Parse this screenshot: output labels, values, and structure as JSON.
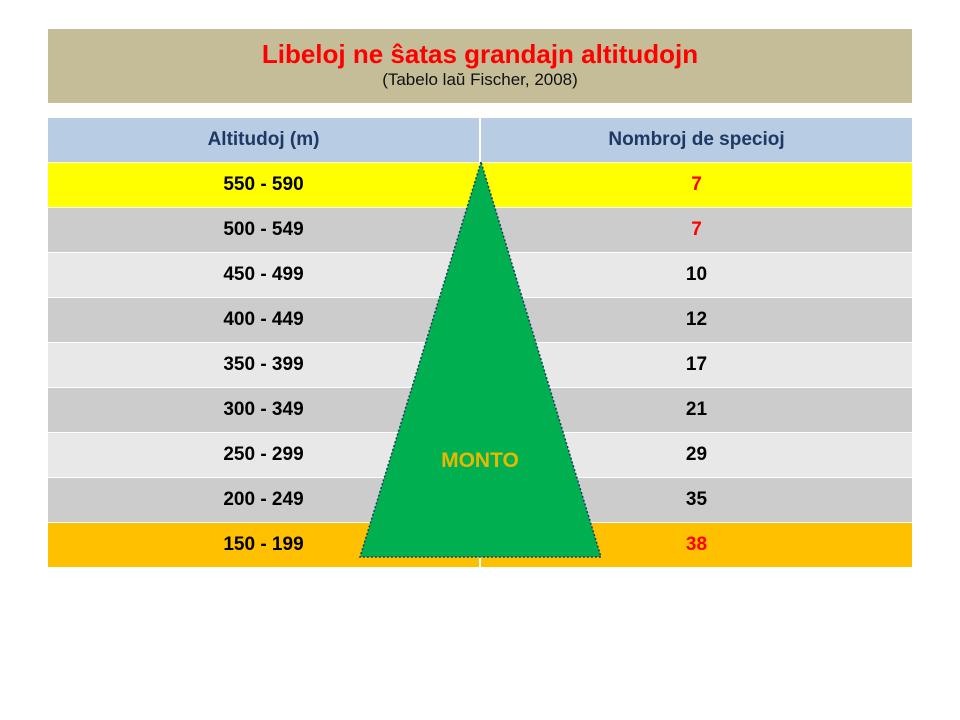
{
  "title": "Libeloj ne ŝatas grandajn altitudojn",
  "subtitle": "(Tabelo laŭ Fischer, 2008)",
  "table": {
    "headers": [
      "Altitudoj (m)",
      "Nombroj de specioj"
    ],
    "rows": [
      {
        "altitude": "550 - 590",
        "count": "7"
      },
      {
        "altitude": "500 - 549",
        "count": "7"
      },
      {
        "altitude": "450 - 499",
        "count": "10"
      },
      {
        "altitude": "400 - 449",
        "count": "12"
      },
      {
        "altitude": "350 - 399",
        "count": "17"
      },
      {
        "altitude": "300 - 349",
        "count": "21"
      },
      {
        "altitude": "250 - 299",
        "count": "29"
      },
      {
        "altitude": "200 - 249",
        "count": "35"
      },
      {
        "altitude": "150 - 199",
        "count": "38"
      }
    ]
  },
  "mountain_label": "MONTO",
  "colors": {
    "title_bg": "#c4bd97",
    "title_text": "#ff0000",
    "header_bg": "#b8cce4",
    "header_text": "#1f3864",
    "top_row": "#ffff00",
    "bottom_row": "#ffc000",
    "row_dark": "#cccccc",
    "row_light": "#e8e8e8",
    "mountain": "#00b050",
    "mountain_label": "#e6b800",
    "highlight_count": "#ff0000"
  }
}
